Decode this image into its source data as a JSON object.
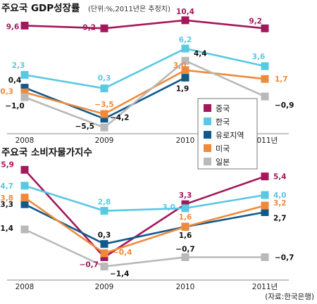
{
  "source": "(자료:한국은행)",
  "legend_items": [
    {
      "name": "중국",
      "color": "#a3185b"
    },
    {
      "name": "한국",
      "color": "#58c8e3"
    },
    {
      "name": "유로지역",
      "color": "#0f5a8a"
    },
    {
      "name": "미국",
      "color": "#ef8a3c"
    },
    {
      "name": "일본",
      "color": "#b9b9b9"
    }
  ],
  "chart_data": [
    {
      "type": "line",
      "title": "주요국 GDP성장률",
      "subtitle": "(단위:%,2011년은 추정치)",
      "categories": [
        "2008",
        "2009",
        "2010",
        "2011년"
      ],
      "x_tick_labels": [
        "2008",
        "2009",
        "2010",
        "2011년"
      ],
      "grid": false,
      "legend_position": "right",
      "series": [
        {
          "name": "중국",
          "color": "#a3185b",
          "values": [
            9.6,
            9.2,
            10.4,
            9.2
          ],
          "labels": [
            "9,6",
            "9,2",
            "10,4",
            "9,2"
          ]
        },
        {
          "name": "한국",
          "color": "#58c8e3",
          "values": [
            2.3,
            0.3,
            6.2,
            3.6
          ],
          "labels": [
            "2,3",
            "0,3",
            "6,2",
            "3,6"
          ]
        },
        {
          "name": "유로지역",
          "color": "#0f5a8a",
          "values": [
            0.4,
            -4.2,
            1.9,
            null
          ],
          "labels": [
            "0,4",
            "−4,2",
            "1,9",
            ""
          ]
        },
        {
          "name": "미국",
          "color": "#ef8a3c",
          "values": [
            -0.3,
            -3.5,
            3.0,
            1.7
          ],
          "labels": [
            "−0,3",
            "−3,5",
            "3,0",
            "1,7"
          ]
        },
        {
          "name": "일본",
          "color": "#b9b9b9",
          "values": [
            -1.0,
            -5.5,
            4.4,
            -0.9
          ],
          "labels": [
            "−1,0",
            "−5,5",
            "4,4",
            "−0,9"
          ]
        }
      ]
    },
    {
      "type": "line",
      "title": "주요국 소비자물가지수",
      "categories": [
        "2008",
        "2009",
        "2010",
        "2011년"
      ],
      "x_tick_labels": [
        "2008",
        "2009",
        "2010",
        "2011년"
      ],
      "grid": false,
      "series": [
        {
          "name": "중국",
          "color": "#a3185b",
          "values": [
            5.9,
            -0.7,
            3.3,
            5.4
          ],
          "labels": [
            "5,9",
            "−0,7",
            "3,3",
            "5,4"
          ]
        },
        {
          "name": "한국",
          "color": "#58c8e3",
          "values": [
            4.7,
            2.8,
            3.0,
            4.0
          ],
          "labels": [
            "4,7",
            "2,8",
            "3,0",
            "4,0"
          ]
        },
        {
          "name": "유로지역",
          "color": "#0f5a8a",
          "values": [
            3.3,
            0.3,
            1.6,
            2.7
          ],
          "labels": [
            "3,3",
            "0,3",
            "1,6",
            "2,7"
          ]
        },
        {
          "name": "미국",
          "color": "#ef8a3c",
          "values": [
            3.8,
            -0.4,
            1.6,
            3.2
          ],
          "labels": [
            "3,8",
            "−0,4",
            "1,6",
            "3,2"
          ]
        },
        {
          "name": "일본",
          "color": "#b9b9b9",
          "values": [
            1.4,
            -1.4,
            -0.7,
            -0.7
          ],
          "labels": [
            "1,4",
            "−1,4",
            "−0,7",
            "−0,7"
          ]
        }
      ]
    }
  ]
}
